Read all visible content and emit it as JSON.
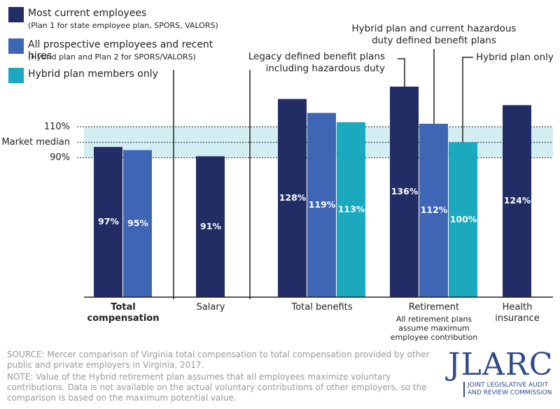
{
  "chart_data": {
    "type": "bar",
    "categories": [
      "Total compensation",
      "Salary",
      "Total benefits",
      "Retirement",
      "Health insurance"
    ],
    "category_notes": [
      null,
      null,
      null,
      "All retirement plans assume maximum employee contribution",
      null
    ],
    "emphasized_category_index": 0,
    "series": [
      {
        "name": "Most current employees",
        "description": "(Plan 1 for state employee plan, SPORS, VALORS)",
        "color": "#222d66",
        "values": [
          97,
          91,
          128,
          136,
          124
        ],
        "value_labels": [
          "97%",
          "91%",
          "128%",
          "136%",
          "124%"
        ]
      },
      {
        "name": "All prospective employees and recent hires",
        "description": "(Hybrid plan and Plan 2 for SPORS/VALORS)",
        "color": "#3f66b5",
        "values": [
          95,
          null,
          119,
          112,
          null
        ],
        "value_labels": [
          "95%",
          null,
          "119%",
          "112%",
          null
        ]
      },
      {
        "name": "Hybrid plan members only",
        "color": "#1aa9bf",
        "values": [
          null,
          null,
          113,
          100,
          null
        ],
        "value_labels": [
          null,
          null,
          "113%",
          "100%",
          null
        ]
      }
    ],
    "ylim": [
      0,
      140
    ],
    "yticks": [
      {
        "value": 110,
        "label": "110%"
      },
      {
        "value": 100,
        "label": "Market median"
      },
      {
        "value": 90,
        "label": "90%"
      }
    ],
    "band_color": "#d3eef3",
    "annotations": [
      "Legacy defined benefit plans including hazardous duty",
      "Hybrid plan and current hazardous duty defined benefit plans",
      "Hybrid plan only"
    ]
  },
  "source": "SOURCE: Mercer comparison of Virginia total compensation to total compensation provided by other public and private employers in Virginia, 2017.",
  "note": "NOTE: Value of the Hybrid retirement plan assumes that all employees maximize voluntary contributions. Data is not available on the actual voluntary contributions of other employers, so the comparison is based on the maximum potential value.",
  "logo": {
    "name": "JLARC",
    "subtitle": "JOINT LEGISLATIVE AUDIT AND REVIEW COMMISSION"
  }
}
